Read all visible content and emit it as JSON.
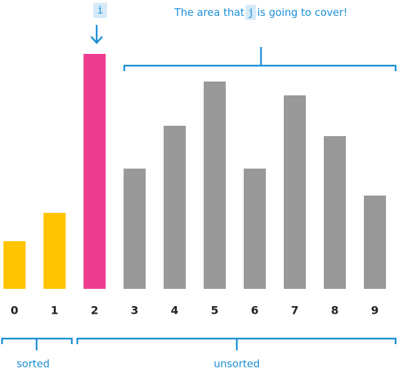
{
  "chart_data": {
    "type": "bar",
    "categories": [
      "0",
      "1",
      "2",
      "3",
      "4",
      "5",
      "6",
      "7",
      "8",
      "9"
    ],
    "values": [
      69,
      110,
      340,
      174,
      236,
      300,
      174,
      280,
      221,
      135
    ],
    "colors": [
      "#ffc400",
      "#ffc400",
      "#ee3d91",
      "#999999",
      "#999999",
      "#999999",
      "#999999",
      "#999999",
      "#999999",
      "#999999"
    ],
    "annotations": {
      "pointer": "i",
      "cover_text": [
        "The area that ",
        "j",
        " is going to cover!"
      ],
      "sorted": "sorted",
      "unsorted": "unsorted"
    }
  }
}
